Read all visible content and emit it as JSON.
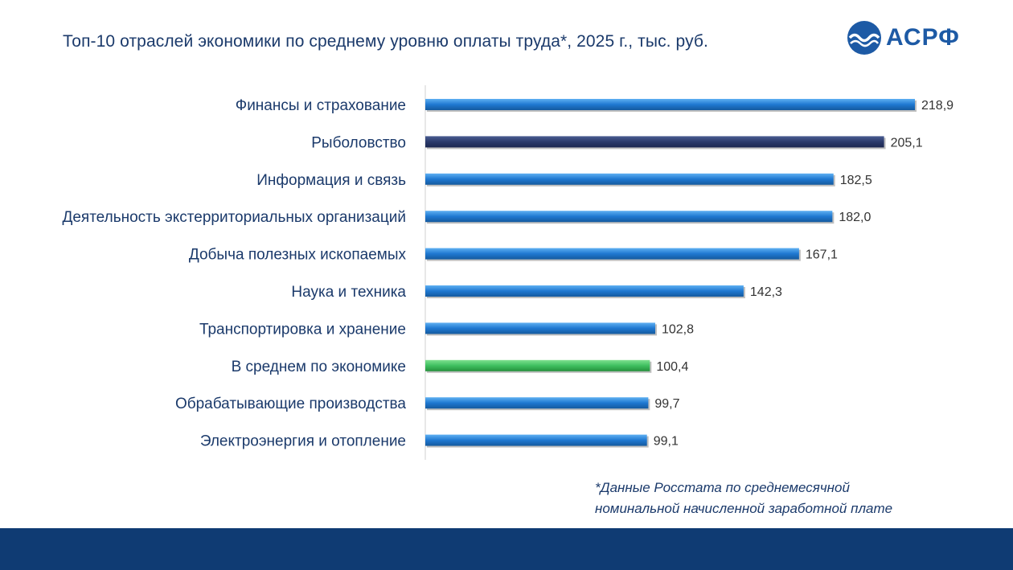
{
  "title": "Топ-10 отраслей экономики по среднему уровню оплаты труда*,  2025 г., тыс. руб.",
  "logo": {
    "text": "АСРФ",
    "icon": "wave-circle-icon",
    "color": "#1d5aa5"
  },
  "footnote": {
    "line1": "*Данные Росстата по среднемесячной",
    "line2": "номинальной начисленной заработной плате"
  },
  "colors": {
    "default_bar": "#1f78d1",
    "highlight_bar": "#2b3a6b",
    "average_bar": "#3fc060",
    "footer": "#0f3b73",
    "text": "#1b3a6b"
  },
  "chart_data": {
    "type": "bar",
    "orientation": "horizontal",
    "categories": [
      "Финансы и страхование",
      "Рыболовство",
      "Информация и связь",
      "Деятельность экстерриториальных организаций",
      "Добыча полезных ископаемых",
      "Наука и техника",
      "Транспортировка и хранение",
      "В среднем по экономике",
      "Обрабатывающие производства",
      "Электроэнергия и отопление"
    ],
    "values": [
      218.9,
      205.1,
      182.5,
      182.0,
      167.1,
      142.3,
      102.8,
      100.4,
      99.7,
      99.1
    ],
    "value_labels": [
      "218,9",
      "205,1",
      "182,5",
      "182,0",
      "167,1",
      "142,3",
      "102,8",
      "100,4",
      "99,7",
      "99,1"
    ],
    "bar_styles": [
      "default",
      "highlight",
      "default",
      "default",
      "default",
      "default",
      "default",
      "average",
      "default",
      "default"
    ],
    "xlim": [
      0,
      230
    ],
    "grid": false,
    "legend": "none"
  }
}
